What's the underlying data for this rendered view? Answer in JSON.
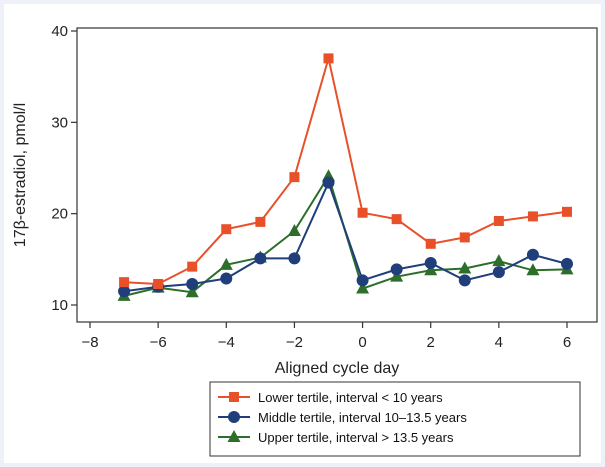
{
  "chart_data": {
    "type": "line",
    "title": "",
    "xlabel": "Aligned cycle day",
    "ylabel": "17β-estradiol, pmol/l",
    "xlim": [
      -8,
      6
    ],
    "ylim": [
      10,
      40
    ],
    "xticks": [
      -8,
      -6,
      -4,
      -2,
      0,
      2,
      4,
      6
    ],
    "xtick_labels": [
      "−8",
      "−6",
      "−4",
      "−2",
      "0",
      "2",
      "4",
      "6"
    ],
    "yticks": [
      10,
      20,
      30,
      40
    ],
    "ytick_labels": [
      "10",
      "20",
      "30",
      "40"
    ],
    "grid": false,
    "legend_position": "bottom-right",
    "x": [
      -7,
      -6,
      -5,
      -4,
      -3,
      -2,
      -1,
      0,
      1,
      2,
      3,
      4,
      5,
      6
    ],
    "series": [
      {
        "name": "Lower tertile, interval < 10 years",
        "color": "#e8502a",
        "marker": "square",
        "values": [
          12.5,
          12.3,
          14.2,
          18.3,
          19.1,
          24.0,
          37.0,
          20.1,
          19.4,
          16.7,
          17.4,
          19.2,
          19.7,
          20.2
        ]
      },
      {
        "name": "Middle tertile, interval 10–13.5 years",
        "color": "#1f3e7a",
        "marker": "circle",
        "values": [
          11.5,
          12.0,
          12.3,
          12.9,
          15.1,
          15.1,
          23.4,
          12.7,
          13.9,
          14.6,
          12.7,
          13.6,
          15.5,
          14.5
        ]
      },
      {
        "name": "Upper tertile, interval > 13.5 years",
        "color": "#2c6e2a",
        "marker": "triangle",
        "values": [
          11.0,
          11.9,
          11.4,
          14.4,
          15.2,
          18.1,
          24.1,
          11.8,
          13.1,
          13.8,
          14.0,
          14.8,
          13.8,
          13.9
        ]
      }
    ]
  }
}
